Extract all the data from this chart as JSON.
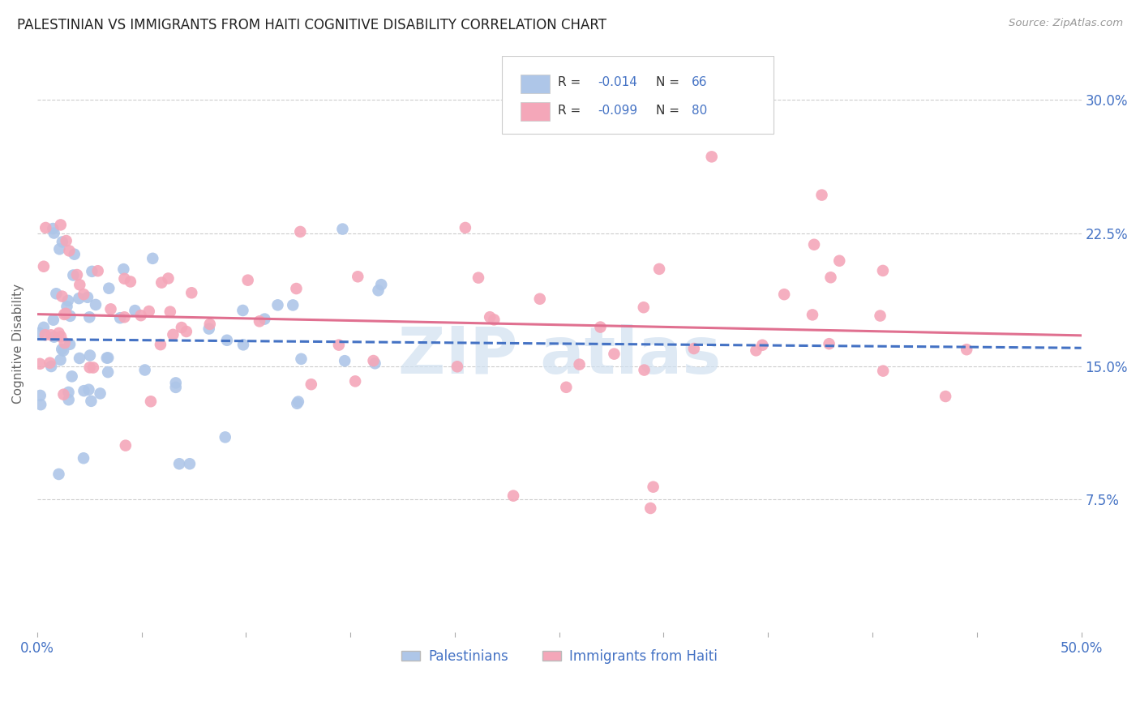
{
  "title": "PALESTINIAN VS IMMIGRANTS FROM HAITI COGNITIVE DISABILITY CORRELATION CHART",
  "source": "Source: ZipAtlas.com",
  "ylabel": "Cognitive Disability",
  "xlim": [
    0.0,
    0.5
  ],
  "ylim": [
    0.0,
    0.325
  ],
  "ytick_vals": [
    0.075,
    0.15,
    0.225,
    0.3
  ],
  "ytick_labels": [
    "7.5%",
    "15.0%",
    "22.5%",
    "30.0%"
  ],
  "pal_color": "#aec6e8",
  "pal_line_color": "#4472c4",
  "hai_color": "#f4a7b9",
  "hai_line_color": "#e07090",
  "pal_R": -0.014,
  "pal_N": 66,
  "hai_R": -0.099,
  "hai_N": 80,
  "pal_label": "Palestinians",
  "hai_label": "Immigrants from Haiti",
  "bg_color": "#ffffff",
  "grid_color": "#cccccc",
  "title_fontsize": 12,
  "tick_color": "#4472c4",
  "watermark": "ZIP atlas",
  "watermark_color": "#d0e0f0",
  "legend_R_color": "#333333",
  "legend_val_color": "#4472c4"
}
